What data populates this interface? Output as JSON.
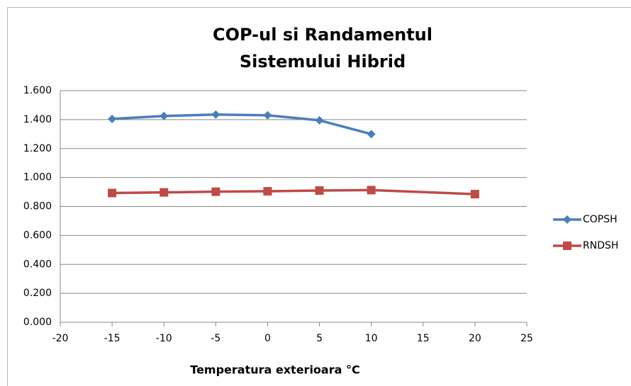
{
  "chart_data": {
    "type": "line",
    "title": "COP-ul si Randamentul Sistemului Hibrid",
    "x_label": "Temperatura exterioara °C",
    "x": [
      -15,
      -10,
      -5,
      0,
      5,
      10,
      20
    ],
    "series": [
      {
        "name": "COPSH",
        "color": "#4a7ebb",
        "marker": "diamond",
        "values": [
          1.405,
          1.425,
          1.435,
          1.43,
          1.395,
          1.3,
          null
        ]
      },
      {
        "name": "RNDSH",
        "color": "#be4b48",
        "marker": "square",
        "values": [
          0.893,
          0.897,
          0.902,
          0.905,
          0.91,
          0.913,
          0.885
        ]
      }
    ],
    "xlim": [
      -20,
      25
    ],
    "xticks": [
      -20,
      -15,
      -10,
      -5,
      0,
      5,
      10,
      15,
      20,
      25
    ],
    "ylim": [
      0,
      1.6
    ],
    "yticks": [
      {
        "value": 0,
        "label": "0.000"
      },
      {
        "value": 0.2,
        "label": "0.200"
      },
      {
        "value": 0.4,
        "label": "0.400"
      },
      {
        "value": 0.6,
        "label": "0.600"
      },
      {
        "value": 0.8,
        "label": "0.800"
      },
      {
        "value": 1.0,
        "label": "1.000"
      },
      {
        "value": 1.2,
        "label": "1.200"
      },
      {
        "value": 1.4,
        "label": "1.400"
      },
      {
        "value": 1.6,
        "label": "1.600"
      }
    ],
    "grid": true,
    "legend": "right"
  }
}
